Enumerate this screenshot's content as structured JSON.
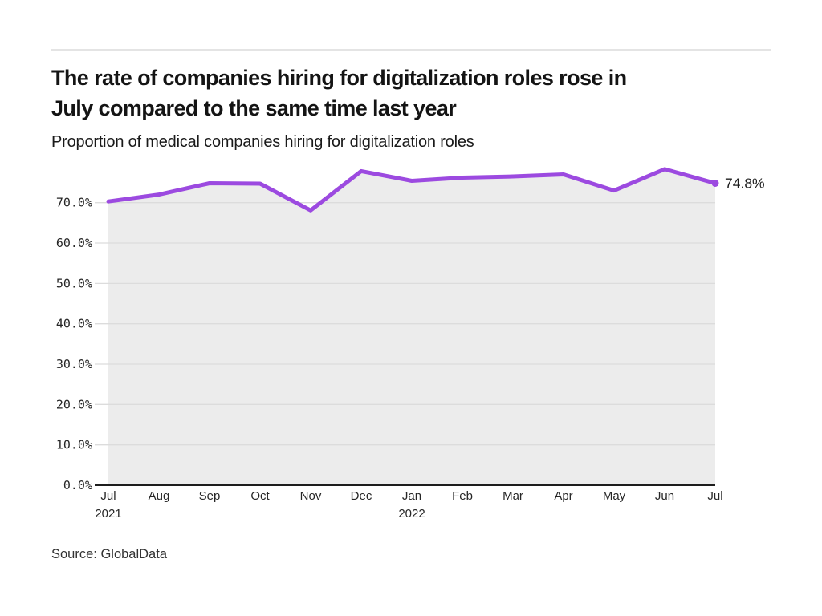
{
  "page": {
    "headline_lines": [
      "The rate of companies hiring for digitalization roles rose in",
      "July compared to the same time last year"
    ],
    "subtitle": "Proportion of medical companies hiring for digitalization roles",
    "source": "Source: GlobalData"
  },
  "chart_data": {
    "type": "line",
    "title": "Proportion of medical companies hiring for digitalization roles",
    "categories": [
      "Jul",
      "Aug",
      "Sep",
      "Oct",
      "Nov",
      "Dec",
      "Jan",
      "Feb",
      "Mar",
      "Apr",
      "May",
      "Jun",
      "Jul"
    ],
    "category_sublabels": {
      "0": "2021",
      "6": "2022"
    },
    "values": [
      70.3,
      72.0,
      74.8,
      74.7,
      68.1,
      77.8,
      75.4,
      76.2,
      76.5,
      77.0,
      73.0,
      78.3,
      74.8
    ],
    "unit": "%",
    "y_ticks": [
      {
        "value": 0,
        "label": "0.0%"
      },
      {
        "value": 10,
        "label": "10.0%"
      },
      {
        "value": 20,
        "label": "20.0%"
      },
      {
        "value": 30,
        "label": "30.0%"
      },
      {
        "value": 40,
        "label": "40.0%"
      },
      {
        "value": 50,
        "label": "50.0%"
      },
      {
        "value": 60,
        "label": "60.0%"
      },
      {
        "value": 70,
        "label": "70.0%"
      }
    ],
    "ylim": [
      0,
      80
    ],
    "grid": "horizontal",
    "legend": false,
    "end_label": "74.8%",
    "colors": {
      "line": "#9c4ae0",
      "area_fill": "#ececec",
      "gridline": "#dcdcdc",
      "axis_line": "#1d1d1d"
    }
  }
}
